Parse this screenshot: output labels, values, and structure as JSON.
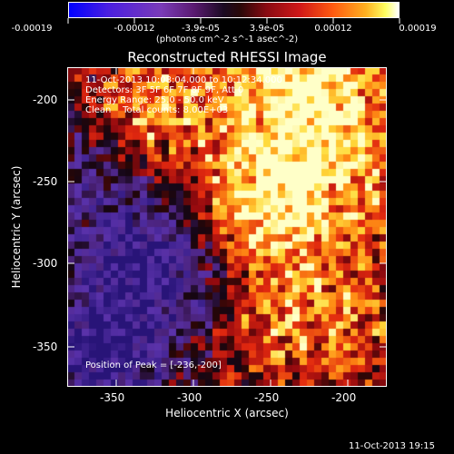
{
  "colorbar": {
    "ticks": [
      "-0.00019",
      "-0.00012",
      "-3.9e-05",
      "3.9e-05",
      "0.00012",
      "0.00019"
    ],
    "units_label": "(photons cm^-2 s^-1 asec^-2)"
  },
  "title": "Reconstructed RHESSI Image",
  "info_lines": [
    "11-Oct-2013 10:08:04.000 to 10:12:34.000",
    "Detectors: 3F 5F 6F 7F 8F 9F, Att 0",
    "Energy Range: 25.0 - 50.0 keV",
    "Clean    Total counts: 8.00E+03"
  ],
  "peak_text": "Position of Peak = [-236,-200]",
  "x_axis": {
    "label": "Heliocentric X (arcsec)",
    "ticks": [
      "-350",
      "-300",
      "-250",
      "-200"
    ]
  },
  "y_axis": {
    "label": "Heliocentric Y (arcsec)",
    "ticks": [
      "-200",
      "-250",
      "-300",
      "-350"
    ]
  },
  "timestamp": "11-Oct-2013 19:15"
}
